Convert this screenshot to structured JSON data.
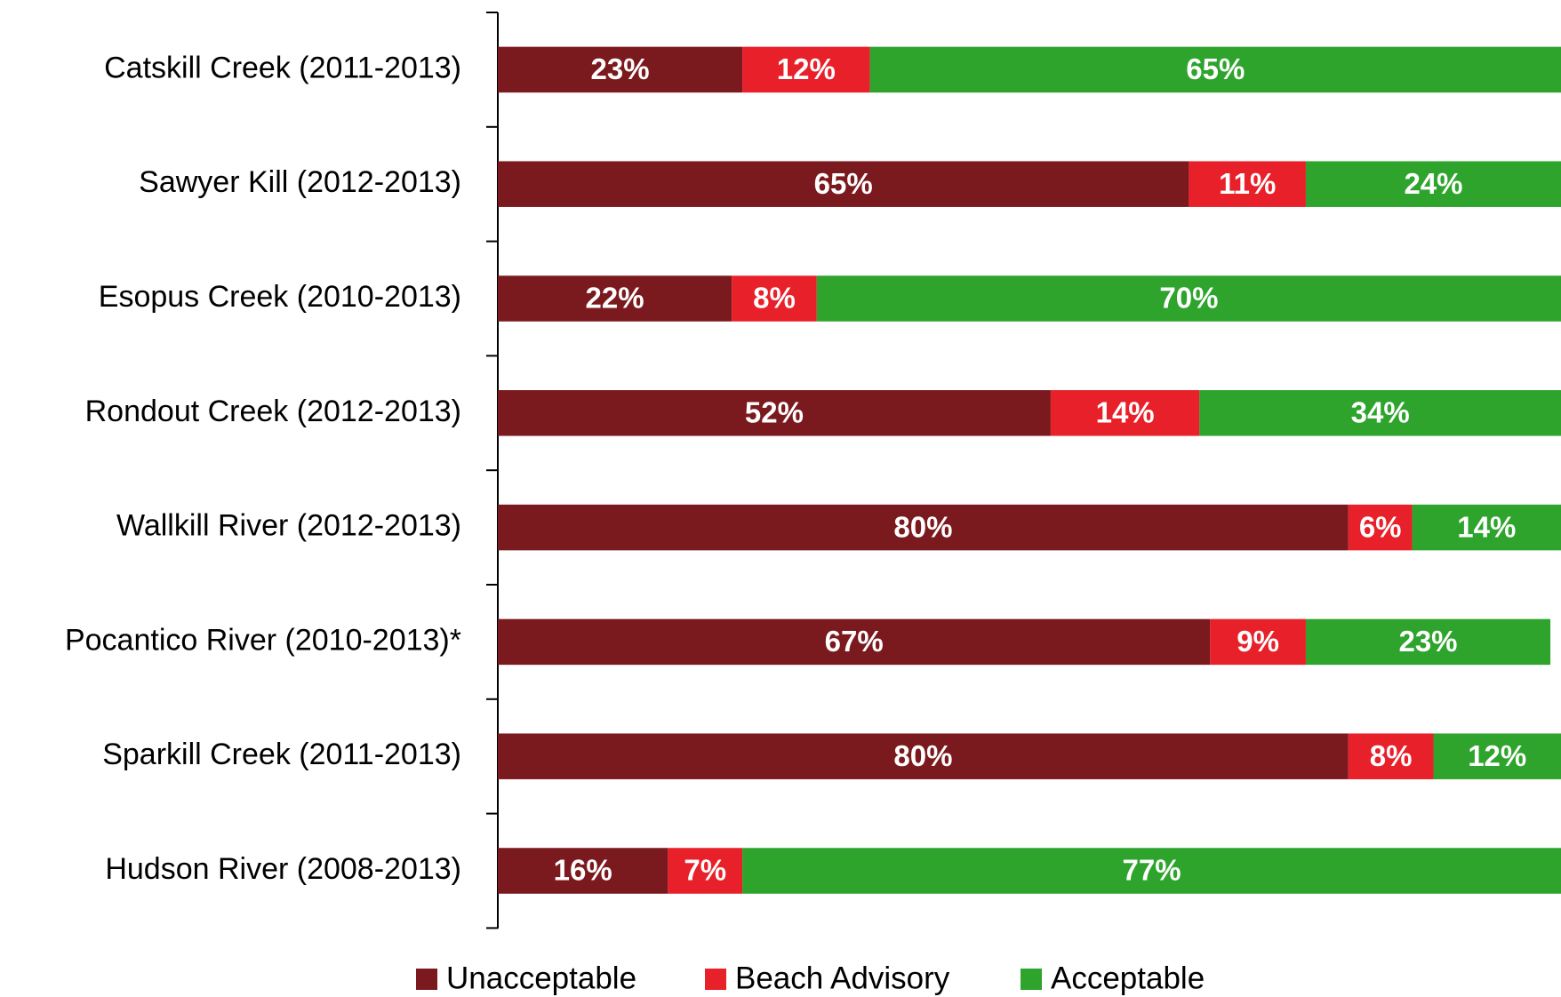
{
  "chart_data": {
    "type": "stacked-bar-horizontal",
    "categories": [
      "Catskill Creek (2011-2013)",
      "Sawyer Kill (2012-2013)",
      "Esopus Creek (2010-2013)",
      "Rondout Creek (2012-2013)",
      "Wallkill River (2012-2013)",
      "Pocantico River (2010-2013)*",
      "Sparkill Creek (2011-2013)",
      "Hudson River (2008-2013)"
    ],
    "series": [
      {
        "name": "Unacceptable",
        "color": "#7b1a1e",
        "values": [
          23,
          65,
          22,
          52,
          80,
          67,
          80,
          16
        ],
        "value_labels": [
          "23%",
          "65%",
          "22%",
          "52%",
          "80%",
          "67%",
          "80%",
          "16%"
        ]
      },
      {
        "name": "Beach Advisory",
        "color": "#e8202a",
        "values": [
          12,
          11,
          8,
          14,
          6,
          9,
          8,
          7
        ],
        "value_labels": [
          "12%",
          "11%",
          "8%",
          "14%",
          "6%",
          "9%",
          "8%",
          "7%"
        ]
      },
      {
        "name": "Acceptable",
        "color": "#2ea42d",
        "values": [
          65,
          24,
          70,
          34,
          14,
          23,
          12,
          77
        ],
        "value_labels": [
          "65%",
          "24%",
          "70%",
          "34%",
          "14%",
          "23%",
          "12%",
          "77%"
        ]
      }
    ],
    "xlim": [
      0,
      100
    ],
    "legend": "bottom"
  }
}
